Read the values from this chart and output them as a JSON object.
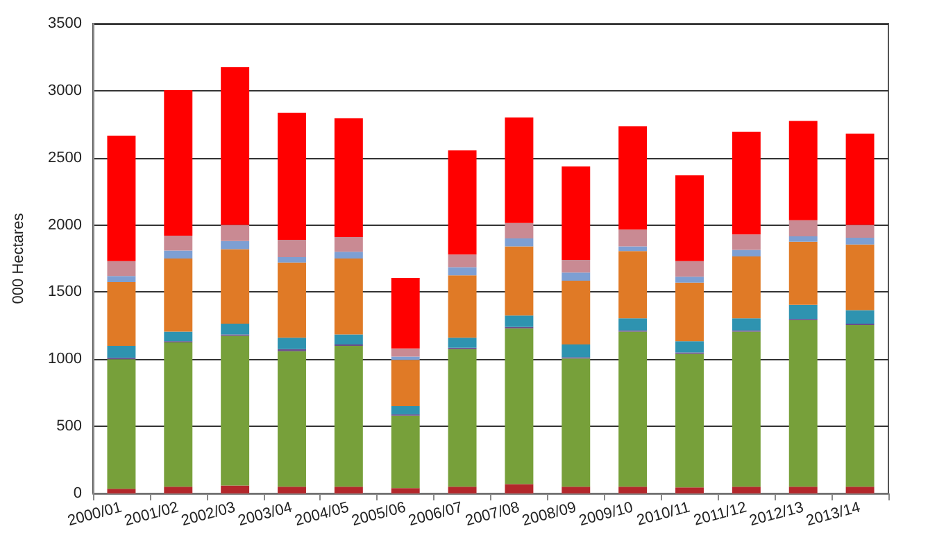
{
  "chart_data": {
    "type": "bar",
    "stacked": true,
    "ylabel": "000 Hectares",
    "categories": [
      "2000/01",
      "2001/02",
      "2002/03",
      "2003/04",
      "2004/05",
      "2005/06",
      "2006/07",
      "2007/08",
      "2008/09",
      "2009/10",
      "2010/11",
      "2011/12",
      "2012/13",
      "2013/14"
    ],
    "series": [
      {
        "color": "#b3272b",
        "values": [
          35,
          50,
          60,
          50,
          50,
          40,
          50,
          70,
          50,
          50,
          45,
          50,
          50,
          50
        ]
      },
      {
        "color": "#77a03a",
        "values": [
          965,
          1075,
          1115,
          1010,
          1050,
          540,
          1025,
          1160,
          955,
          1155,
          995,
          1155,
          1240,
          1205
        ]
      },
      {
        "color": "#6b4c8a",
        "values": [
          10,
          10,
          10,
          15,
          10,
          10,
          10,
          10,
          10,
          10,
          10,
          10,
          10,
          10
        ]
      },
      {
        "color": "#2e93b0",
        "values": [
          90,
          70,
          80,
          85,
          75,
          60,
          75,
          85,
          95,
          90,
          85,
          90,
          105,
          100
        ]
      },
      {
        "color": "#e07a26",
        "values": [
          475,
          545,
          555,
          560,
          565,
          345,
          465,
          515,
          475,
          500,
          435,
          460,
          470,
          490
        ]
      },
      {
        "color": "#7d9fd3",
        "values": [
          45,
          60,
          60,
          40,
          50,
          25,
          60,
          60,
          60,
          35,
          45,
          50,
          40,
          50
        ]
      },
      {
        "color": "#c98a93",
        "values": [
          110,
          110,
          120,
          130,
          110,
          60,
          95,
          115,
          95,
          125,
          115,
          115,
          120,
          95
        ]
      },
      {
        "color": "#ff0000",
        "values": [
          935,
          1085,
          1175,
          945,
          885,
          525,
          775,
          785,
          695,
          770,
          640,
          765,
          740,
          680
        ]
      }
    ],
    "ylim": [
      0,
      3500
    ],
    "yticks": [
      0,
      500,
      1000,
      1500,
      2000,
      2500,
      3000,
      3500
    ],
    "grid": "y"
  }
}
